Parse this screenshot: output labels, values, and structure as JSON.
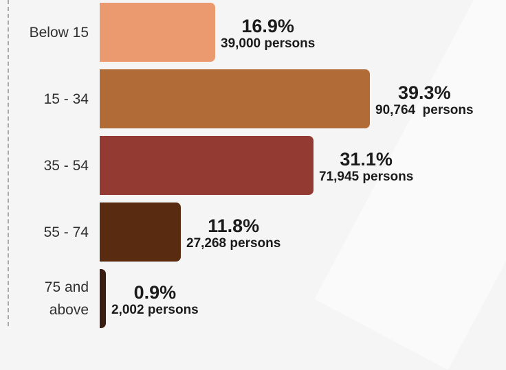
{
  "chart_data": {
    "type": "bar",
    "orientation": "horizontal",
    "categories": [
      "Below 15",
      "15 - 34",
      "35 - 54",
      "55 - 74",
      "75 and\nabove"
    ],
    "values": [
      16.9,
      39.3,
      31.1,
      11.8,
      0.9
    ],
    "value_labels": [
      "16.9%",
      "39.3%",
      "31.1%",
      "11.8%",
      "0.9%"
    ],
    "count_labels": [
      "39,000 persons",
      "90,764  persons",
      "71,945 persons",
      "27,268 persons",
      "2,002 persons"
    ],
    "colors": [
      "#eb9a70",
      "#b06b37",
      "#933a33",
      "#592c12",
      "#3a1e14"
    ],
    "title": "",
    "xlabel": "",
    "ylabel": "",
    "legend": "none",
    "grid": false
  }
}
